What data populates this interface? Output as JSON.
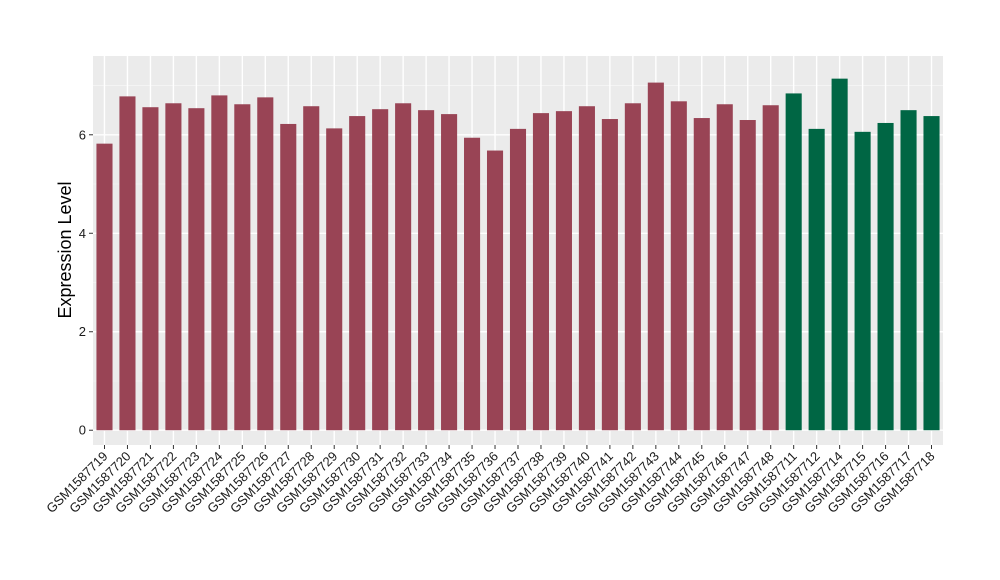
{
  "chart_data": {
    "type": "bar",
    "title": "",
    "xlabel": "",
    "ylabel": "Expression Level",
    "ylim": [
      -0.3,
      7.6
    ],
    "yticks": [
      0,
      2,
      4,
      6
    ],
    "grid": true,
    "background": "#ebebeb",
    "categories": [
      "GSM1587719",
      "GSM1587720",
      "GSM1587721",
      "GSM1587722",
      "GSM1587723",
      "GSM1587724",
      "GSM1587725",
      "GSM1587726",
      "GSM1587727",
      "GSM1587728",
      "GSM1587729",
      "GSM1587730",
      "GSM1587731",
      "GSM1587732",
      "GSM1587733",
      "GSM1587734",
      "GSM1587735",
      "GSM1587736",
      "GSM1587737",
      "GSM1587738",
      "GSM1587739",
      "GSM1587740",
      "GSM1587741",
      "GSM1587742",
      "GSM1587743",
      "GSM1587744",
      "GSM1587745",
      "GSM1587746",
      "GSM1587747",
      "GSM1587748",
      "GSM1587711",
      "GSM1587712",
      "GSM1587714",
      "GSM1587715",
      "GSM1587716",
      "GSM1587717",
      "GSM1587718"
    ],
    "values": [
      5.82,
      6.78,
      6.56,
      6.64,
      6.54,
      6.8,
      6.62,
      6.76,
      6.22,
      6.58,
      6.13,
      6.38,
      6.52,
      6.64,
      6.5,
      6.42,
      5.94,
      5.68,
      6.12,
      6.44,
      6.48,
      6.58,
      6.32,
      6.64,
      7.06,
      6.68,
      6.34,
      6.62,
      6.3,
      6.6,
      6.84,
      6.12,
      7.14,
      6.06,
      6.24,
      6.5,
      6.38
    ],
    "group_colors": [
      "#994455",
      "#994455",
      "#994455",
      "#994455",
      "#994455",
      "#994455",
      "#994455",
      "#994455",
      "#994455",
      "#994455",
      "#994455",
      "#994455",
      "#994455",
      "#994455",
      "#994455",
      "#994455",
      "#994455",
      "#994455",
      "#994455",
      "#994455",
      "#994455",
      "#994455",
      "#994455",
      "#994455",
      "#994455",
      "#994455",
      "#994455",
      "#994455",
      "#994455",
      "#994455",
      "#006644",
      "#006644",
      "#006644",
      "#006644",
      "#006644",
      "#006644",
      "#006644"
    ]
  }
}
